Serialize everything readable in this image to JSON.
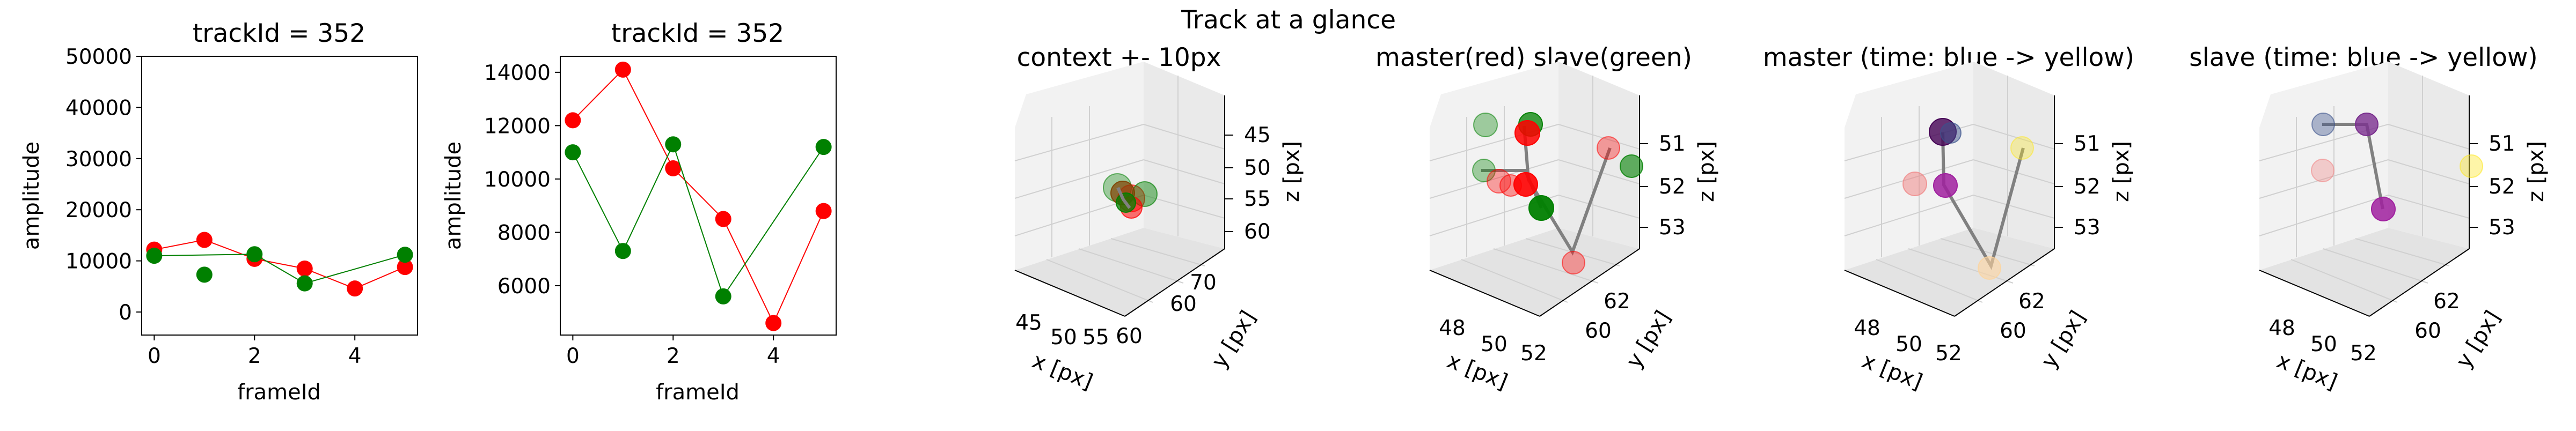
{
  "figure": {
    "suptitle": "Track at a glance",
    "panels": [
      {
        "title": "trackId = 352",
        "xlabel": "frameId",
        "ylabel": "amplitude"
      },
      {
        "title": "trackId = 352",
        "xlabel": "frameId",
        "ylabel": "amplitude"
      },
      {
        "title": "context +- 10px",
        "xlabel": "x [px]",
        "ylabel": "y [px]",
        "zlabel": "z [px]"
      },
      {
        "title": "master(red) slave(green)",
        "xlabel": "x [px]",
        "ylabel": "y [px]",
        "zlabel": "z [px]"
      },
      {
        "title": "master (time: blue -> yellow)",
        "xlabel": "x [px]",
        "ylabel": "y [px]",
        "zlabel": "z [px]"
      },
      {
        "title": "slave (time: blue -> yellow)",
        "xlabel": "x [px]",
        "ylabel": "y [px]",
        "zlabel": "z [px]"
      }
    ]
  },
  "colors": {
    "master": "#ff0000",
    "slave": "#008000",
    "track_line": "#808080",
    "time_start": "#440154",
    "time_end": "#fde725"
  },
  "chart_data": [
    {
      "type": "line",
      "title": "trackId = 352",
      "xlabel": "frameId",
      "ylabel": "amplitude",
      "xlim": [
        -0.25,
        5.25
      ],
      "ylim": [
        -4500,
        50000
      ],
      "xticks": [
        0,
        2,
        4
      ],
      "yticks": [
        0,
        10000,
        20000,
        30000,
        40000,
        50000
      ],
      "series": [
        {
          "x": [
            0,
            1,
            2,
            3,
            4,
            5
          ],
          "values": [
            12200,
            14100,
            10400,
            8500,
            4600,
            8800
          ],
          "color": "#ff0000"
        },
        {
          "x": [
            0,
            2,
            3,
            5
          ],
          "values": [
            11000,
            11300,
            5600,
            11200
          ],
          "color": "#008000",
          "extra_x": [
            1
          ],
          "extra_values": [
            7300
          ]
        }
      ],
      "grid": false
    },
    {
      "type": "line",
      "title": "trackId = 352",
      "xlabel": "frameId",
      "ylabel": "amplitude",
      "xlim": [
        -0.25,
        5.25
      ],
      "ylim": [
        4150,
        14600
      ],
      "xticks": [
        0,
        2,
        4
      ],
      "yticks": [
        6000,
        8000,
        10000,
        12000,
        14000
      ],
      "series": [
        {
          "x": [
            0,
            1,
            2,
            3,
            4,
            5
          ],
          "values": [
            12200,
            14100,
            10400,
            8500,
            4600,
            8800
          ],
          "color": "#ff0000"
        },
        {
          "x": [
            0,
            1,
            2,
            3,
            5
          ],
          "values": [
            11000,
            7300,
            11300,
            5600,
            11200
          ],
          "color": "#008000"
        }
      ],
      "grid": false
    },
    {
      "type": "scatter",
      "title": "context +- 10px",
      "projection": "3d",
      "xlabel": "x [px]",
      "ylabel": "y [px]",
      "zlabel": "z [px]",
      "xticks": [
        45,
        50,
        55,
        60
      ],
      "yticks": [
        60,
        70
      ],
      "zticks": [
        45,
        50,
        55,
        60
      ]
    },
    {
      "type": "scatter",
      "title": "master(red) slave(green)",
      "projection": "3d",
      "xlabel": "x [px]",
      "ylabel": "y [px]",
      "zlabel": "z [px]",
      "xticks": [
        48,
        50,
        52
      ],
      "yticks": [
        60,
        62
      ],
      "zticks": [
        51,
        52,
        53
      ]
    },
    {
      "type": "scatter",
      "title": "master (time: blue -> yellow)",
      "projection": "3d",
      "xlabel": "x [px]",
      "ylabel": "y [px]",
      "zlabel": "z [px]",
      "xticks": [
        48,
        50,
        52
      ],
      "yticks": [
        60,
        62
      ],
      "zticks": [
        51,
        52,
        53
      ]
    },
    {
      "type": "scatter",
      "title": "slave (time: blue -> yellow)",
      "projection": "3d",
      "xlabel": "x [px]",
      "ylabel": "y [px]",
      "zlabel": "z [px]",
      "xticks": [
        48,
        50,
        52
      ],
      "yticks": [
        60,
        62
      ],
      "zticks": [
        51,
        52,
        53
      ]
    }
  ]
}
